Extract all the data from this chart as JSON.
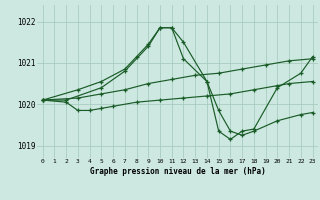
{
  "background_color": "#cce8e0",
  "grid_color": "#aaccbf",
  "line_color": "#1a5c28",
  "xlabel": "Graphe pression niveau de la mer (hPa)",
  "xlim": [
    -0.5,
    23.5
  ],
  "ylim": [
    1018.7,
    1022.4
  ],
  "yticks": [
    1019,
    1020,
    1021,
    1022
  ],
  "xticks": [
    0,
    1,
    2,
    3,
    4,
    5,
    6,
    7,
    8,
    9,
    10,
    11,
    12,
    13,
    14,
    15,
    16,
    17,
    18,
    19,
    20,
    21,
    22,
    23
  ],
  "series": [
    {
      "x": [
        0,
        2,
        5,
        7,
        9,
        10,
        11,
        12,
        14,
        15,
        16,
        17,
        18,
        20,
        22,
        23
      ],
      "y": [
        1020.1,
        1020.1,
        1020.4,
        1020.8,
        1021.4,
        1021.85,
        1021.85,
        1021.5,
        1020.55,
        1019.85,
        1019.35,
        1019.25,
        1019.35,
        1019.6,
        1019.75,
        1019.8
      ]
    },
    {
      "x": [
        0,
        3,
        5,
        7,
        9,
        11,
        13,
        15,
        17,
        19,
        21,
        23
      ],
      "y": [
        1020.1,
        1020.15,
        1020.25,
        1020.35,
        1020.5,
        1020.6,
        1020.7,
        1020.75,
        1020.85,
        1020.95,
        1021.05,
        1021.1
      ]
    },
    {
      "x": [
        0,
        3,
        5,
        7,
        8,
        9,
        10,
        11,
        12,
        14,
        15,
        16,
        17,
        18,
        20,
        22,
        23
      ],
      "y": [
        1020.1,
        1020.35,
        1020.55,
        1020.85,
        1021.15,
        1021.45,
        1021.85,
        1021.85,
        1021.1,
        1020.55,
        1019.35,
        1019.15,
        1019.35,
        1019.4,
        1020.4,
        1020.75,
        1021.15
      ]
    },
    {
      "x": [
        0,
        2,
        3,
        4,
        5,
        6,
        8,
        10,
        12,
        14,
        16,
        18,
        20,
        21,
        23
      ],
      "y": [
        1020.1,
        1020.05,
        1019.85,
        1019.85,
        1019.9,
        1019.95,
        1020.05,
        1020.1,
        1020.15,
        1020.2,
        1020.25,
        1020.35,
        1020.45,
        1020.5,
        1020.55
      ]
    }
  ]
}
